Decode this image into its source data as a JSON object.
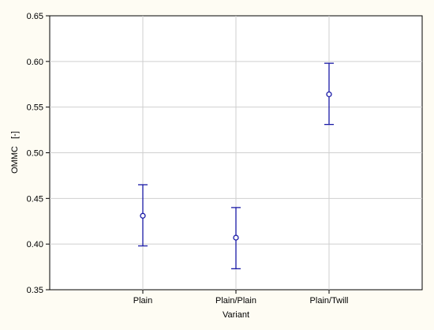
{
  "chart_data": {
    "type": "scatter",
    "subtype": "mean-with-error-bars",
    "xlabel": "Variant",
    "ylabel": "OMMC   [-]",
    "categories": [
      "Plain",
      "Plain/Plain",
      "Plain/Twill"
    ],
    "series": [
      {
        "mean": [
          0.431,
          0.407,
          0.564
        ],
        "lower": [
          0.398,
          0.373,
          0.531
        ],
        "upper": [
          0.465,
          0.44,
          0.598
        ]
      }
    ],
    "ylim": [
      0.35,
      0.65
    ],
    "yticks": [
      "0.35",
      "0.40",
      "0.45",
      "0.50",
      "0.55",
      "0.60",
      "0.65"
    ],
    "grid": true,
    "colors": {
      "series": "#1a1aa6",
      "grid": "#cfcfcf",
      "background": "#fefcf3",
      "plot_bg": "#ffffff"
    }
  }
}
